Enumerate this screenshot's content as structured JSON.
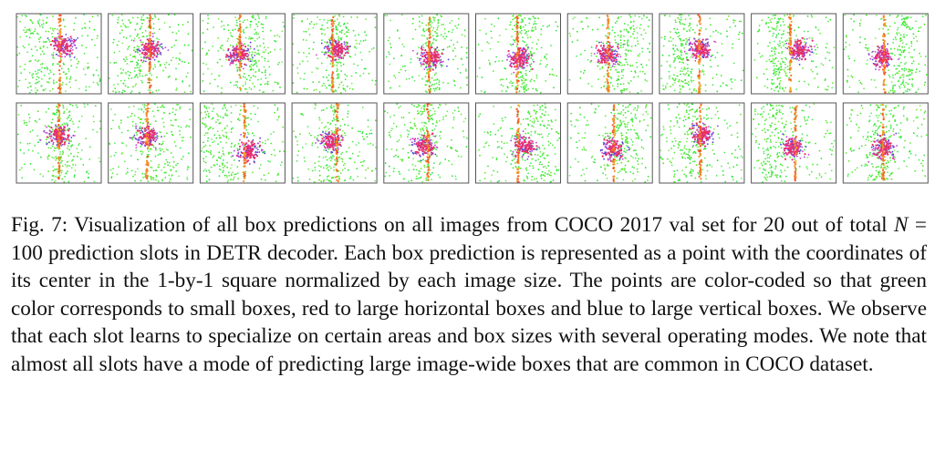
{
  "figure": {
    "label": "Fig. 7:",
    "caption": [
      "Visualization of all box predictions on all images from COCO 2017 val set for 20 out of total ",
      "N",
      " = 100 prediction slots in DETR decoder. Each box prediction is represented as a point with the coordinates of its center in the 1-by-1 square normalized by each image size. The points are color-coded so that green color corresponds to small boxes, red to large horizontal boxes and blue to large vertical boxes. We observe that each slot learns to specialize on certain areas and box sizes with several operating modes. We note that almost all slots have a mode of predicting large image-wide boxes that are common in COCO dataset."
    ]
  }
}
